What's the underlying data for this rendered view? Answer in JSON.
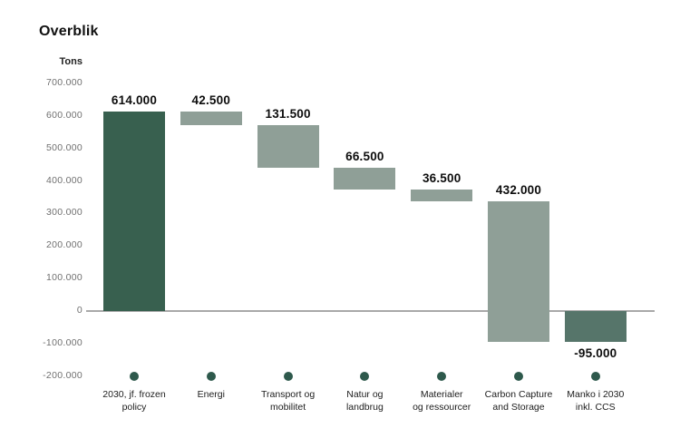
{
  "chart_data": {
    "type": "bar",
    "subtype": "waterfall",
    "title": "Overblik",
    "ylabel": "Tons",
    "xlabel": "",
    "ylim": [
      -200000,
      700000
    ],
    "grid": false,
    "legend": false,
    "yticks": [
      {
        "value": 700000,
        "label": "700.000"
      },
      {
        "value": 600000,
        "label": "600.000"
      },
      {
        "value": 500000,
        "label": "500.000"
      },
      {
        "value": 400000,
        "label": "400.000"
      },
      {
        "value": 300000,
        "label": "300.000"
      },
      {
        "value": 200000,
        "label": "200.000"
      },
      {
        "value": 100000,
        "label": "100.000"
      },
      {
        "value": 0,
        "label": "0"
      },
      {
        "value": -100000,
        "label": "-100.000"
      },
      {
        "value": -200000,
        "label": "-200.000"
      }
    ],
    "bars": [
      {
        "category_lines": [
          "2030, jf. frozen",
          "policy"
        ],
        "value_label": "614.000",
        "delta": 614000,
        "from": 0,
        "to": 614000,
        "style": "dark",
        "value_label_position": "above"
      },
      {
        "category_lines": [
          "Energi"
        ],
        "value_label": "42.500",
        "delta": -42500,
        "from": 614000,
        "to": 571500,
        "style": "light",
        "value_label_position": "above"
      },
      {
        "category_lines": [
          "Transport og",
          "mobilitet"
        ],
        "value_label": "131.500",
        "delta": -131500,
        "from": 571500,
        "to": 440000,
        "style": "light",
        "value_label_position": "above"
      },
      {
        "category_lines": [
          "Natur og",
          "landbrug"
        ],
        "value_label": "66.500",
        "delta": -66500,
        "from": 440000,
        "to": 373500,
        "style": "light",
        "value_label_position": "above"
      },
      {
        "category_lines": [
          "Materialer",
          "og ressourcer"
        ],
        "value_label": "36.500",
        "delta": -36500,
        "from": 373500,
        "to": 337000,
        "style": "light",
        "value_label_position": "above"
      },
      {
        "category_lines": [
          "Carbon Capture",
          "and Storage"
        ],
        "value_label": "432.000",
        "delta": -432000,
        "from": 337000,
        "to": -95000,
        "style": "light",
        "value_label_position": "above"
      },
      {
        "category_lines": [
          "Manko i 2030",
          "inkl. CCS"
        ],
        "value_label": "-95.000",
        "delta": -95000,
        "from": 0,
        "to": -95000,
        "style": "medium",
        "value_label_position": "below"
      }
    ],
    "colors": {
      "dark": "#38604f",
      "medium": "#56756a",
      "light": "#8f9f97",
      "dot": "#2e594c",
      "axis_line": "#a9a9a9",
      "tick_text": "#6f6f6f"
    }
  }
}
